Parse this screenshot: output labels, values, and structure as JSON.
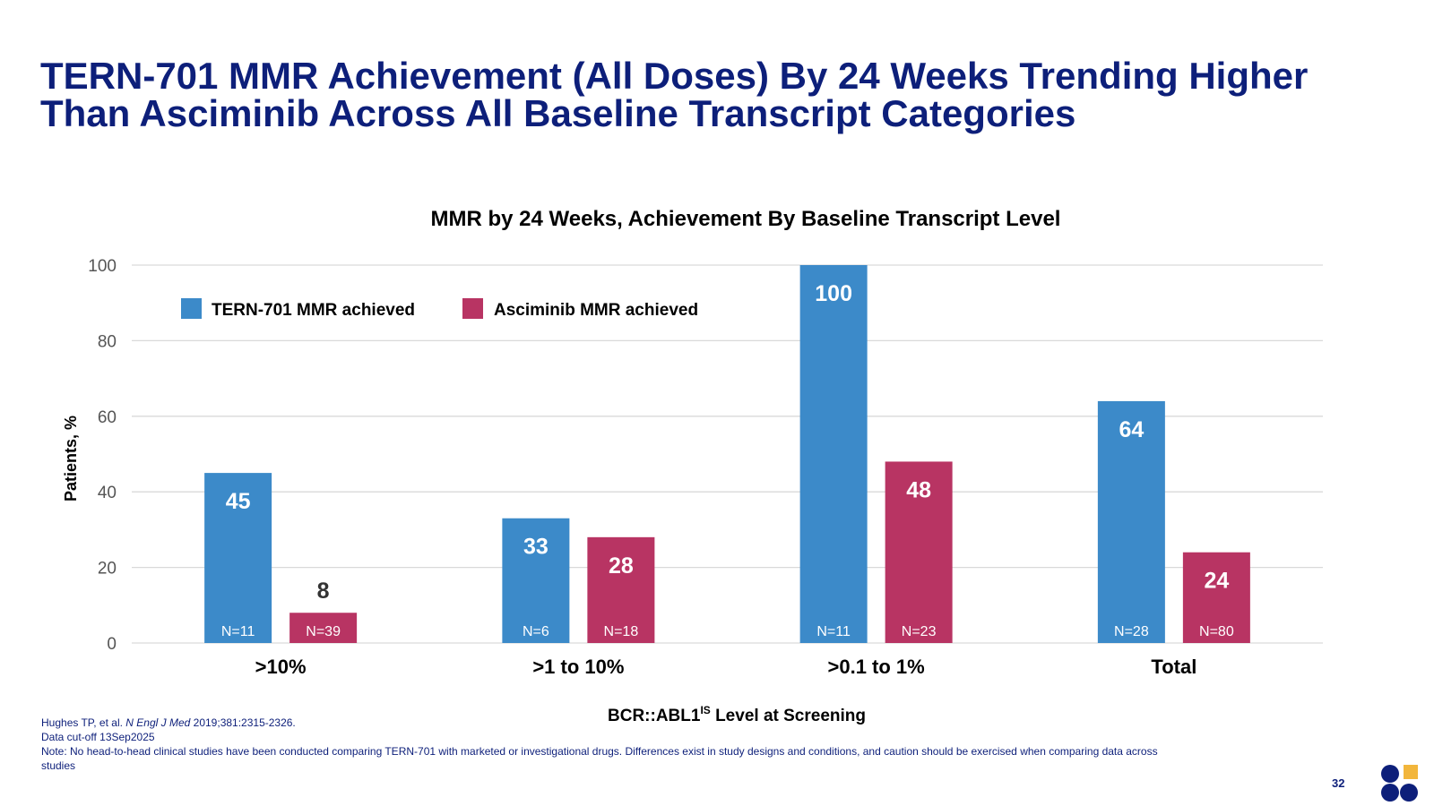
{
  "slide": {
    "title_line1": "TERN-701 MMR Achievement (All Doses) By 24 Weeks Trending Higher",
    "title_line2": "Than Asciminib Across All Baseline Transcript Categories",
    "page_number": "32"
  },
  "footnotes": {
    "ref_authors": "Hughes TP, et al. ",
    "ref_journal": "N Engl J Med",
    "ref_details": " 2019;381:2315-2326.",
    "cutoff": "Data cut-off 13Sep2025",
    "note": "Note: No head-to-head clinical studies have been conducted comparing TERN-701 with marketed or investigational drugs. Differences exist in study designs and conditions, and caution should be exercised when comparing data across studies"
  },
  "colors": {
    "title": "#0d1f7a",
    "tern": "#3c8ac9",
    "asciminib": "#b83463",
    "grid": "#d9d9d9",
    "logo_navy": "#0d1f7a",
    "logo_gold": "#f2b63c"
  },
  "chart_data": {
    "type": "bar",
    "title": "MMR by 24 Weeks, Achievement By Baseline Transcript Level",
    "xlabel_main": "BCR::ABL1",
    "xlabel_sup": "IS",
    "xlabel_rest": " Level at Screening",
    "ylabel": "Patients, %",
    "ylim": [
      0,
      100
    ],
    "yticks": [
      0,
      20,
      40,
      60,
      80,
      100
    ],
    "grid": true,
    "legend_position": "top-left",
    "categories": [
      ">10%",
      ">1 to 10%",
      ">0.1 to 1%",
      "Total"
    ],
    "series": [
      {
        "name": "TERN-701 MMR achieved",
        "color": "#3c8ac9",
        "values": [
          45,
          33,
          100,
          64
        ],
        "n_labels": [
          "N=11",
          "N=6",
          "N=11",
          "N=28"
        ]
      },
      {
        "name": "Asciminib MMR achieved",
        "color": "#b83463",
        "values": [
          8,
          28,
          48,
          24
        ],
        "n_labels": [
          "N=39",
          "N=18",
          "N=23",
          "N=80"
        ]
      }
    ]
  }
}
